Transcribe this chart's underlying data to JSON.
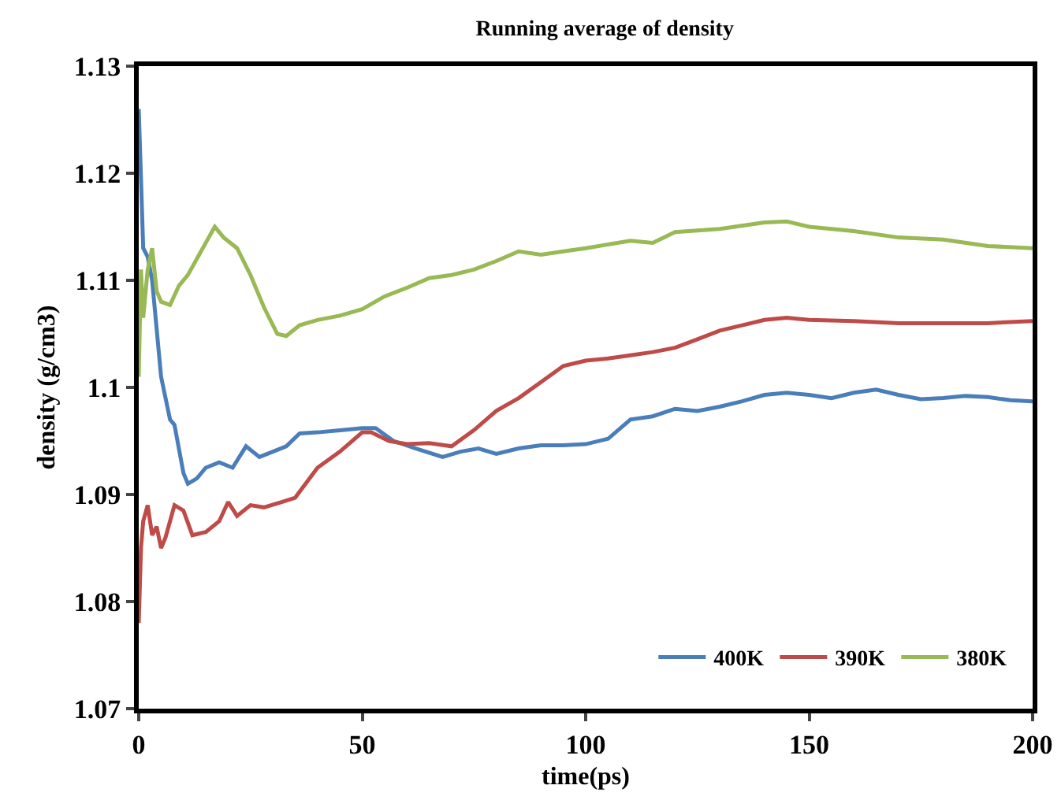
{
  "chart_data": {
    "type": "line",
    "title": "Running average of density",
    "xlabel": "time(ps)",
    "ylabel": "density (g/cm3)",
    "xlim": [
      0,
      200
    ],
    "xticks": [
      0,
      50,
      100,
      150,
      200
    ],
    "ylim": [
      1.07,
      1.13
    ],
    "yticks": [
      1.07,
      1.08,
      1.09,
      1.1,
      1.11,
      1.12,
      1.13
    ],
    "grid": false,
    "legend": "bottom right",
    "marker": "none",
    "line_style": "solid",
    "series": [
      {
        "name": "400K",
        "color": "#4a7ebb",
        "x": [
          0,
          1,
          2,
          3,
          5,
          7,
          8,
          10,
          11,
          13,
          15,
          18,
          21,
          24,
          27,
          30,
          33,
          36,
          40,
          45,
          50,
          53,
          57,
          62,
          68,
          72,
          76,
          80,
          85,
          90,
          95,
          100,
          105,
          110,
          115,
          120,
          125,
          130,
          135,
          140,
          145,
          150,
          155,
          160,
          165,
          170,
          175,
          180,
          185,
          190,
          195,
          200
        ],
        "values": [
          1.126,
          1.113,
          1.1122,
          1.11,
          1.101,
          1.097,
          1.0965,
          1.092,
          1.091,
          1.0915,
          1.0925,
          1.093,
          1.0925,
          1.0945,
          1.0935,
          1.094,
          1.0945,
          1.0957,
          1.0958,
          1.096,
          1.0962,
          1.0962,
          1.095,
          1.0943,
          1.0935,
          1.094,
          1.0943,
          1.0938,
          1.0943,
          1.0946,
          1.0946,
          1.0947,
          1.0952,
          1.097,
          1.0973,
          1.098,
          1.0978,
          1.0982,
          1.0987,
          1.0993,
          1.0995,
          1.0993,
          1.099,
          1.0995,
          1.0998,
          1.0993,
          1.0989,
          1.099,
          1.0992,
          1.0991,
          1.0988,
          1.0987
        ]
      },
      {
        "name": "390K",
        "color": "#be4b48",
        "x": [
          0,
          0.5,
          1,
          2,
          3,
          4,
          5,
          6,
          7,
          8,
          10,
          12,
          15,
          18,
          20,
          22,
          25,
          28,
          32,
          35,
          40,
          45,
          50,
          52,
          56,
          60,
          65,
          70,
          75,
          80,
          85,
          90,
          95,
          100,
          105,
          110,
          115,
          120,
          125,
          130,
          135,
          140,
          145,
          150,
          160,
          170,
          180,
          190,
          200
        ],
        "values": [
          1.078,
          1.085,
          1.0875,
          1.089,
          1.0862,
          1.087,
          1.085,
          1.086,
          1.0875,
          1.089,
          1.0885,
          1.0862,
          1.0865,
          1.0875,
          1.0893,
          1.088,
          1.089,
          1.0888,
          1.0893,
          1.0897,
          1.0925,
          1.094,
          1.0958,
          1.0958,
          1.095,
          1.0947,
          1.0948,
          1.0945,
          1.096,
          1.0978,
          1.099,
          1.1005,
          1.102,
          1.1025,
          1.1027,
          1.103,
          1.1033,
          1.1037,
          1.1045,
          1.1053,
          1.1058,
          1.1063,
          1.1065,
          1.1063,
          1.1062,
          1.106,
          1.106,
          1.106,
          1.1062
        ]
      },
      {
        "name": "380K",
        "color": "#98b954",
        "x": [
          0,
          0.5,
          1,
          2,
          3,
          4,
          5,
          7,
          9,
          11,
          13,
          15,
          17,
          19,
          22,
          25,
          28,
          31,
          33,
          36,
          40,
          45,
          50,
          55,
          60,
          65,
          70,
          75,
          80,
          85,
          90,
          95,
          100,
          110,
          115,
          120,
          130,
          140,
          145,
          150,
          160,
          170,
          180,
          190,
          200
        ],
        "values": [
          1.101,
          1.111,
          1.1065,
          1.111,
          1.113,
          1.109,
          1.108,
          1.1077,
          1.1095,
          1.1105,
          1.112,
          1.1135,
          1.115,
          1.114,
          1.113,
          1.1105,
          1.1075,
          1.105,
          1.1048,
          1.1058,
          1.1063,
          1.1067,
          1.1073,
          1.1085,
          1.1093,
          1.1102,
          1.1105,
          1.111,
          1.1118,
          1.1127,
          1.1124,
          1.1127,
          1.113,
          1.1137,
          1.1135,
          1.1145,
          1.1148,
          1.1154,
          1.1155,
          1.115,
          1.1146,
          1.114,
          1.1138,
          1.1132,
          1.113
        ]
      }
    ]
  }
}
